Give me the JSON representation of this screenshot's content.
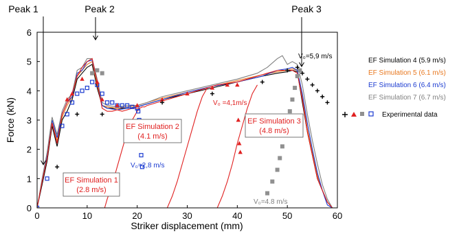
{
  "chart_data": {
    "type": "line",
    "xlabel": "Striker displacement (mm)",
    "ylabel": "Force (kN)",
    "xlim": [
      0,
      60
    ],
    "ylim": [
      0,
      6
    ],
    "x_ticks": [
      "0",
      "10",
      "20",
      "30",
      "40",
      "50",
      "60"
    ],
    "y_ticks": [
      "0",
      "1",
      "2",
      "3",
      "4",
      "5",
      "6"
    ],
    "grid": false,
    "legend_position": "right",
    "peaks": [
      {
        "label": "Peak 1",
        "x": 1
      },
      {
        "label": "Peak 2",
        "x": 12
      },
      {
        "label": "Peak 3",
        "x": 53
      }
    ],
    "series": [
      {
        "name": "EF Simulation 4 (5.9 m/s)",
        "color": "#000000",
        "x": [
          0,
          1,
          2,
          3,
          4,
          5,
          6,
          7,
          8,
          9,
          10,
          11,
          12,
          13,
          14,
          16,
          18,
          20,
          22,
          25,
          30,
          35,
          40,
          45,
          48,
          50,
          51,
          52,
          53,
          54,
          55,
          56,
          57,
          58,
          59
        ],
        "y": [
          0,
          0.8,
          1.6,
          2.8,
          2.1,
          3.0,
          3.3,
          3.7,
          4.4,
          4.6,
          4.8,
          4.9,
          4.1,
          3.5,
          3.4,
          3.4,
          3.4,
          3.45,
          3.55,
          3.7,
          3.9,
          4.1,
          4.3,
          4.5,
          4.6,
          4.65,
          4.7,
          4.65,
          3.6,
          2.6,
          1.8,
          1.0,
          0.6,
          0.2,
          0
        ]
      },
      {
        "name": "EF Simulation 5 (6.1 m/s)",
        "color": "#e87820",
        "x": [
          0,
          1,
          2,
          3,
          4,
          5,
          6,
          7,
          8,
          9,
          10,
          11,
          12,
          13,
          14,
          16,
          18,
          20,
          22,
          25,
          30,
          35,
          40,
          45,
          48,
          50,
          51,
          52,
          53,
          54,
          55,
          56,
          57,
          58,
          59
        ],
        "y": [
          0,
          0.9,
          1.7,
          2.9,
          2.3,
          3.1,
          3.5,
          3.8,
          4.5,
          4.7,
          4.9,
          5.0,
          4.2,
          3.5,
          3.45,
          3.4,
          3.45,
          3.5,
          3.6,
          3.75,
          3.95,
          4.15,
          4.35,
          4.55,
          4.65,
          4.7,
          4.75,
          4.7,
          3.8,
          2.7,
          1.9,
          1.1,
          0.6,
          0.2,
          0
        ]
      },
      {
        "name": "EF Simulation 6 (6.4 m/s)",
        "color": "#1a3ad0",
        "x": [
          0,
          1,
          2,
          3,
          4,
          5,
          6,
          7,
          8,
          9,
          10,
          11,
          12,
          13,
          14,
          16,
          18,
          20,
          22,
          25,
          30,
          35,
          40,
          45,
          48,
          50,
          51,
          52,
          53,
          54,
          55,
          56,
          57,
          58,
          59
        ],
        "y": [
          0,
          0.9,
          1.8,
          3.0,
          2.4,
          3.2,
          3.6,
          3.8,
          4.6,
          4.7,
          5.0,
          5.05,
          4.3,
          3.5,
          3.4,
          3.35,
          3.4,
          3.45,
          3.55,
          3.7,
          3.95,
          4.15,
          4.3,
          4.5,
          4.7,
          4.75,
          4.8,
          4.7,
          3.9,
          2.9,
          2.0,
          1.2,
          0.6,
          0.1,
          0
        ]
      },
      {
        "name": "EF Simulation 7 (6.7 m/s)",
        "color": "#808080",
        "x": [
          0,
          1,
          2,
          3,
          4,
          5,
          6,
          7,
          8,
          9,
          10,
          11,
          12,
          13,
          14,
          16,
          18,
          20,
          22,
          25,
          30,
          35,
          40,
          44,
          46,
          48,
          49,
          50,
          51,
          52,
          53,
          54,
          55,
          56,
          57,
          58,
          59
        ],
        "y": [
          0,
          1.0,
          1.9,
          3.1,
          2.5,
          3.3,
          3.7,
          3.9,
          4.7,
          4.8,
          5.1,
          5.1,
          4.4,
          3.6,
          3.5,
          3.45,
          3.5,
          3.5,
          3.6,
          3.8,
          4.0,
          4.2,
          4.4,
          4.6,
          4.8,
          5.1,
          5.2,
          4.9,
          5.0,
          4.9,
          4.2,
          3.2,
          2.3,
          1.5,
          0.8,
          0.3,
          0
        ]
      },
      {
        "name": "EF Simulation 1 (2.8 m/s)",
        "color": "#e02020",
        "x": [
          0,
          1,
          2,
          3,
          4,
          5,
          6,
          7,
          8,
          9,
          10,
          11,
          12,
          13,
          14,
          15,
          16,
          17,
          18,
          19,
          20,
          20.5,
          21,
          21.5,
          22,
          24,
          27,
          30,
          32,
          34,
          36,
          38,
          40,
          42,
          43,
          44,
          45,
          46,
          47,
          48,
          49,
          50,
          51,
          52,
          53,
          54,
          55,
          56,
          57,
          58,
          59
        ],
        "y": [
          0,
          0.9,
          1.7,
          2.9,
          2.2,
          3.2,
          3.6,
          3.9,
          4.5,
          4.8,
          5.0,
          5.1,
          4.3,
          3.4,
          3.3,
          3.3,
          3.35,
          3.3,
          3.35,
          3.4,
          3.4,
          3.4,
          3.45,
          3.45,
          3.5,
          3.6,
          3.75,
          3.9,
          4.0,
          4.1,
          4.2,
          4.25,
          4.3,
          4.4,
          4.45,
          4.5,
          4.55,
          4.6,
          4.65,
          4.7,
          4.7,
          4.7,
          4.7,
          4.6,
          3.7,
          2.6,
          1.8,
          1.0,
          0.6,
          0.2,
          0
        ]
      },
      {
        "name": "EF Simulation 1 (2.8 m/s) unloading",
        "color": "#e02020",
        "x": [
          13.5,
          14,
          15,
          16,
          17,
          18,
          19,
          20,
          20.5
        ],
        "y": [
          0,
          0.3,
          0.8,
          1.4,
          2.0,
          2.6,
          3.0,
          3.3,
          3.4
        ]
      },
      {
        "name": "EF Simulation 2 (4.1 m/s) unloading",
        "color": "#e02020",
        "x": [
          26,
          27,
          28,
          29,
          30,
          31,
          32,
          33,
          34
        ],
        "y": [
          0,
          0.4,
          0.9,
          1.5,
          2.1,
          2.7,
          3.3,
          3.8,
          4.1
        ]
      },
      {
        "name": "EF Simulation 3 (4.8 m/s) unloading",
        "color": "#e02020",
        "x": [
          36,
          37,
          38,
          39,
          40,
          41,
          42,
          43,
          44
        ],
        "y": [
          0,
          0.4,
          0.9,
          1.5,
          2.2,
          2.8,
          3.4,
          3.9,
          4.2
        ]
      },
      {
        "name": "Experimental data (2.8 m/s)",
        "color": "#1a3ad0",
        "marker": "square-open",
        "x": [
          0,
          2,
          5,
          6,
          7,
          8,
          9,
          10,
          11,
          12,
          13,
          14,
          15,
          16,
          17,
          18,
          19,
          20,
          20.2,
          20.4,
          20.6,
          20.8,
          21
        ],
        "y": [
          0,
          1.0,
          2.8,
          3.2,
          3.6,
          3.9,
          4.0,
          4.1,
          4.3,
          4.2,
          3.9,
          3.6,
          3.6,
          3.5,
          3.5,
          3.5,
          3.45,
          3.4,
          3.3,
          3.0,
          2.4,
          1.8,
          1.4
        ]
      },
      {
        "name": "Experimental data (4.1 m/s)",
        "color": "#e02020",
        "marker": "triangle",
        "x": [
          6,
          7,
          9,
          12,
          13,
          16,
          20,
          25,
          30,
          35,
          38,
          40,
          40.2,
          40.4,
          40.6
        ],
        "y": [
          3.7,
          3.9,
          4.4,
          4.3,
          3.7,
          3.5,
          3.5,
          3.7,
          3.9,
          4.1,
          4.2,
          4.2,
          3.0,
          2.2,
          1.9
        ]
      },
      {
        "name": "Experimental data (4.8 m/s)",
        "color": "#909090",
        "marker": "square",
        "x": [
          11,
          12,
          13,
          46,
          47,
          48,
          48.5,
          49,
          49.5,
          50,
          50.5,
          51,
          51.5,
          52,
          52.5
        ],
        "y": [
          4.6,
          4.7,
          4.6,
          0.5,
          0.9,
          1.3,
          1.7,
          2.1,
          2.5,
          2.9,
          3.3,
          3.7,
          4.1,
          4.5,
          4.7
        ]
      },
      {
        "name": "Experimental data (5.9 m/s)",
        "color": "#000000",
        "marker": "plus",
        "x": [
          4,
          8,
          13,
          25,
          35,
          45,
          50,
          52,
          53,
          54,
          55,
          56,
          57,
          58
        ],
        "y": [
          1.4,
          3.2,
          3.2,
          3.6,
          3.9,
          4.3,
          4.7,
          4.8,
          4.6,
          4.4,
          4.2,
          4.0,
          3.8,
          3.6
        ]
      }
    ],
    "annotations": [
      {
        "text": "V₀=5,9 m/s",
        "color": "#000000"
      },
      {
        "text": "V₀ =4,1m/s",
        "color": "#e02020"
      },
      {
        "text": "V₀=2,8 m/s",
        "color": "#1a3ad0"
      },
      {
        "text": "V₀=4.8 m/s",
        "color": "#808080"
      }
    ],
    "boxed_labels": [
      {
        "line1": "EF Simulation 1",
        "line2": "(2.8 m/s)"
      },
      {
        "line1": "EF Simulation 2",
        "line2": "(4.1 m/s)"
      },
      {
        "line1": "EF Simulation 3",
        "line2": "(4.8 m/s)"
      }
    ],
    "legend": [
      {
        "label": "EF Simulation 4 (5.9 m/s)",
        "color": "#000000"
      },
      {
        "label": "EF Simulation 5 (6.1 m/s)",
        "color": "#e87820"
      },
      {
        "label": "EF Simulation 6 (6.4 m/s)",
        "color": "#1a3ad0"
      },
      {
        "label": "EF Simulation 7 (6.7 m/s)",
        "color": "#808080"
      },
      {
        "label": "Experimental data",
        "color": "#000000"
      }
    ]
  }
}
